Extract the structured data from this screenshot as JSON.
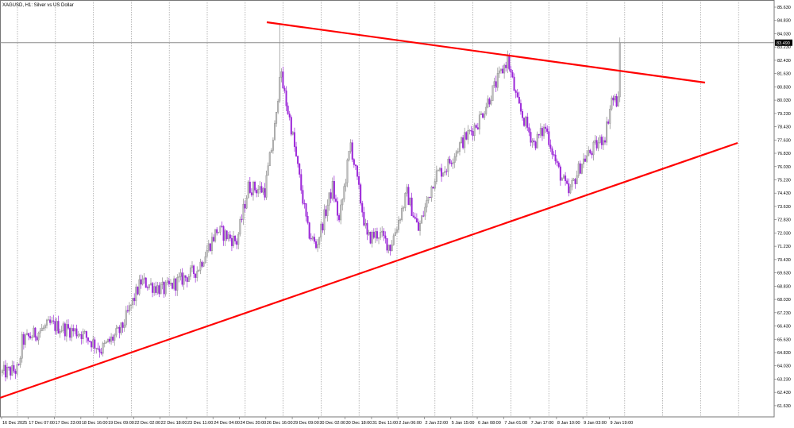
{
  "window": {
    "title": "XAGUSD, H1:  Silver vs US Dollar"
  },
  "colors": {
    "bull": "#8a8a8a",
    "bear": "#9b27d8",
    "trendline": "#ff0000",
    "grid": "#9a9a9a",
    "price_line": "#8c8c8c",
    "price_box": "#000000"
  },
  "chart_data": {
    "type": "candlestick",
    "symbol": "XAGUSD",
    "timeframe": "H1",
    "description": "Silver vs US Dollar",
    "current_price": "83.490",
    "current_price_value": 83.49,
    "ylim": [
      61.2,
      86.0
    ],
    "y_ticks": [
      "85.630",
      "84.830",
      "84.030",
      "83.230",
      "82.430",
      "81.630",
      "80.830",
      "80.030",
      "79.230",
      "78.430",
      "77.630",
      "76.830",
      "76.030",
      "75.230",
      "74.430",
      "73.630",
      "72.830",
      "72.030",
      "71.230",
      "70.430",
      "69.630",
      "68.830",
      "68.030",
      "67.230",
      "66.430",
      "65.630",
      "64.830",
      "64.030",
      "63.230",
      "62.430",
      "61.630"
    ],
    "x_ticks": [
      "16 Dec 2025",
      "17 Dec 07:00",
      "17 Dec 23:00",
      "18 Dec 16:00",
      "19 Dec 09:00",
      "22 Dec 02:00",
      "22 Dec 18:00",
      "23 Dec 11:00",
      "24 Dec 04:00",
      "24 Dec 20:00",
      "26 Dec 16:00",
      "29 Dec 09:00",
      "30 Dec 02:00",
      "30 Dec 18:00",
      "31 Dec 11:00",
      "2 Jan 06:00",
      "2 Jan 22:00",
      "5 Jan 15:00",
      "6 Jan 08:00",
      "7 Jan 01:00",
      "7 Jan 17:00",
      "8 Jan 10:00",
      "9 Jan 03:00",
      "9 Jan 19:00"
    ],
    "bars_per_x_tick": 16,
    "close_path": [
      [
        0,
        63.6
      ],
      [
        10,
        63.8
      ],
      [
        12,
        65.5
      ],
      [
        29,
        66.5
      ],
      [
        48,
        66.0
      ],
      [
        60,
        65.0
      ],
      [
        72,
        66.2
      ],
      [
        84,
        69.1
      ],
      [
        98,
        68.6
      ],
      [
        118,
        69.8
      ],
      [
        130,
        72.2
      ],
      [
        142,
        71.5
      ],
      [
        149,
        74.8
      ],
      [
        159,
        74.6
      ],
      [
        166,
        79.0
      ],
      [
        168,
        81.8
      ],
      [
        175,
        78.4
      ],
      [
        185,
        72.2
      ],
      [
        190,
        71.2
      ],
      [
        200,
        74.8
      ],
      [
        204,
        72.7
      ],
      [
        211,
        77.4
      ],
      [
        221,
        71.7
      ],
      [
        228,
        72.0
      ],
      [
        235,
        71.2
      ],
      [
        245,
        74.4
      ],
      [
        252,
        72.2
      ],
      [
        262,
        75.5
      ],
      [
        269,
        76.0
      ],
      [
        276,
        77.2
      ],
      [
        288,
        78.7
      ],
      [
        298,
        80.8
      ],
      [
        306,
        82.5
      ],
      [
        312,
        79.8
      ],
      [
        322,
        77.4
      ],
      [
        329,
        78.4
      ],
      [
        336,
        76.0
      ],
      [
        343,
        74.4
      ],
      [
        351,
        76.3
      ],
      [
        365,
        77.9
      ],
      [
        369,
        80.1
      ],
      [
        373,
        79.9
      ]
    ],
    "spikes": [
      {
        "bar": 168,
        "high": 84.6
      },
      {
        "bar": 306,
        "high": 82.7
      },
      {
        "bar": 374,
        "high": 83.49
      }
    ],
    "trendlines": [
      {
        "name": "resistance",
        "from": [
          "26 Dec 16:00",
          84.4
        ],
        "to": [
          "9 Jan 19:00+",
          80.9
        ]
      },
      {
        "name": "support",
        "from": [
          "16 Dec 2025",
          62.6
        ],
        "to": [
          "9 Jan 19:00+",
          77.8
        ]
      }
    ]
  }
}
